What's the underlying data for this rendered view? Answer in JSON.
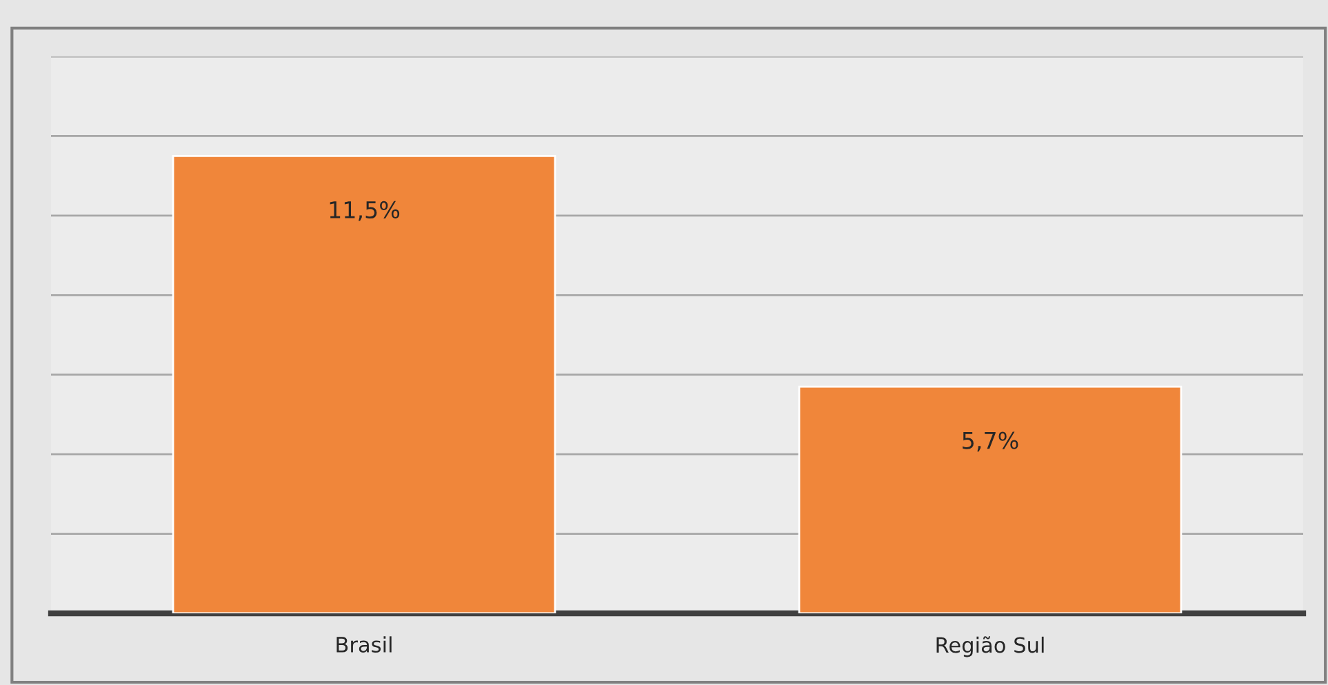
{
  "chart_data": {
    "type": "bar",
    "categories": [
      "Brasil",
      "Região Sul"
    ],
    "values": [
      11.5,
      5.7
    ],
    "value_labels": [
      "11,5%",
      "5,7%"
    ],
    "color": "#f0863a",
    "ylim": [
      0,
      14
    ],
    "yticks": [
      {
        "value": 0,
        "label": null
      },
      {
        "value": 2,
        "label": null
      },
      {
        "value": 4,
        "label": null
      },
      {
        "value": 6,
        "label": null
      },
      {
        "value": 8,
        "label": null
      },
      {
        "value": 10,
        "label": null
      },
      {
        "value": 12,
        "label": null
      },
      {
        "value": 14,
        "label": null
      }
    ],
    "grid": "y",
    "tick_labels": "x"
  }
}
